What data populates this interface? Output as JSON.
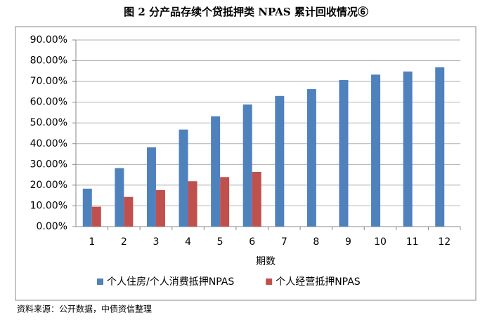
{
  "chart_data": {
    "type": "bar",
    "title": "图 2  分产品存续个贷抵押类 NPAS 累计回收情况⑥",
    "x_label": "期数",
    "source": "资料来源：公开数据，中债资信整理",
    "categories": [
      "1",
      "2",
      "3",
      "4",
      "5",
      "6",
      "7",
      "8",
      "9",
      "10",
      "11",
      "12"
    ],
    "series": [
      {
        "name": "个人住房/个人消费抵押NPAS",
        "color": "#4f81bd",
        "values": [
          18.3,
          28.2,
          38.2,
          46.8,
          53.2,
          58.9,
          63.0,
          66.3,
          70.7,
          73.3,
          74.8,
          76.8
        ]
      },
      {
        "name": "个人经营抵押NPAS",
        "color": "#c0504d",
        "values": [
          9.6,
          14.3,
          17.6,
          21.9,
          23.9,
          26.4,
          null,
          null,
          null,
          null,
          null,
          null
        ]
      }
    ],
    "ylim": [
      0,
      90
    ],
    "yticks": [
      {
        "value": 0,
        "label": "0.00%"
      },
      {
        "value": 10,
        "label": "10.00%"
      },
      {
        "value": 20,
        "label": "20.00%"
      },
      {
        "value": 30,
        "label": "30.00%"
      },
      {
        "value": 40,
        "label": "40.00%"
      },
      {
        "value": 50,
        "label": "50.00%"
      },
      {
        "value": 60,
        "label": "60.00%"
      },
      {
        "value": 70,
        "label": "70.00%"
      },
      {
        "value": 80,
        "label": "80.00%"
      },
      {
        "value": 90,
        "label": "90.00%"
      }
    ],
    "grid": true,
    "legend": "bottom"
  }
}
